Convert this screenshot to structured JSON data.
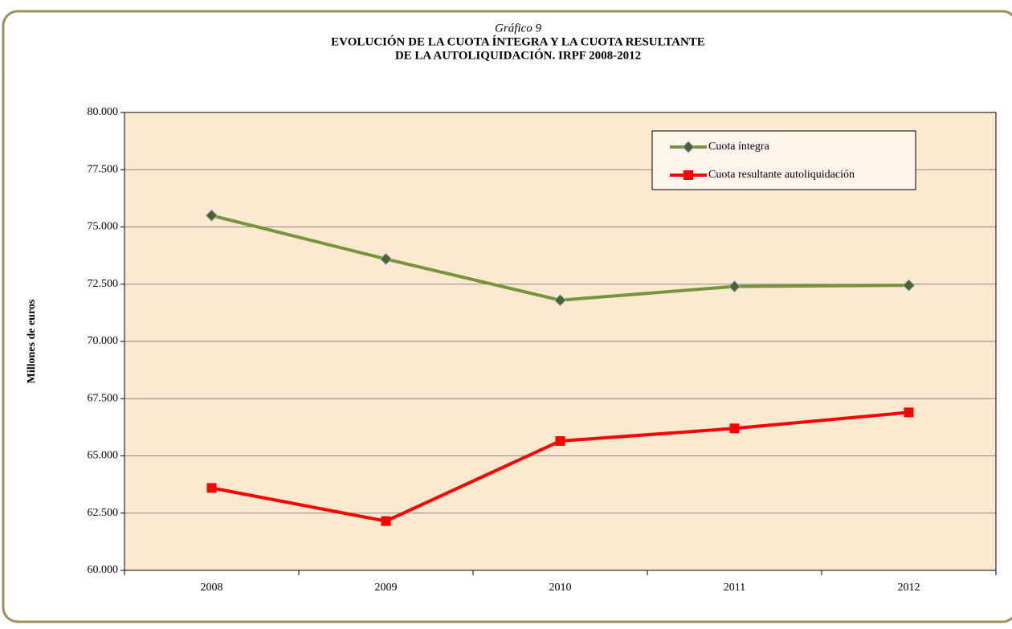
{
  "chart_data": {
    "type": "line",
    "caption": "Gráfico 9",
    "title": [
      "EVOLUCIÓN DE LA CUOTA ÍNTEGRA Y LA CUOTA RESULTANTE",
      "DE LA AUTOLIQUIDACIÓN.  IRPF 2008-2012"
    ],
    "y_label": "Millones de euros",
    "categories": [
      "2008",
      "2009",
      "2010",
      "2011",
      "2012"
    ],
    "series": [
      {
        "name": "Cuota íntegra",
        "color": "#77933c",
        "marker": "diamond",
        "values": [
          75500,
          73600,
          71800,
          72400,
          72450
        ]
      },
      {
        "name": "Cuota resultante autoliquidación",
        "color": "#ff0000",
        "marker": "square",
        "values": [
          63600,
          62150,
          65650,
          66200,
          66900
        ]
      }
    ],
    "ylim": [
      60000,
      80000
    ],
    "yticks": [
      {
        "value": 60000,
        "label": "60.000"
      },
      {
        "value": 62500,
        "label": "62.500"
      },
      {
        "value": 65000,
        "label": "65.000"
      },
      {
        "value": 67500,
        "label": "67.500"
      },
      {
        "value": 70000,
        "label": "70.000"
      },
      {
        "value": 72500,
        "label": "72.500"
      },
      {
        "value": 75000,
        "label": "75.000"
      },
      {
        "value": 77500,
        "label": "77.500"
      },
      {
        "value": 80000,
        "label": "80.000"
      }
    ],
    "grid": true,
    "legend": "top-right"
  }
}
